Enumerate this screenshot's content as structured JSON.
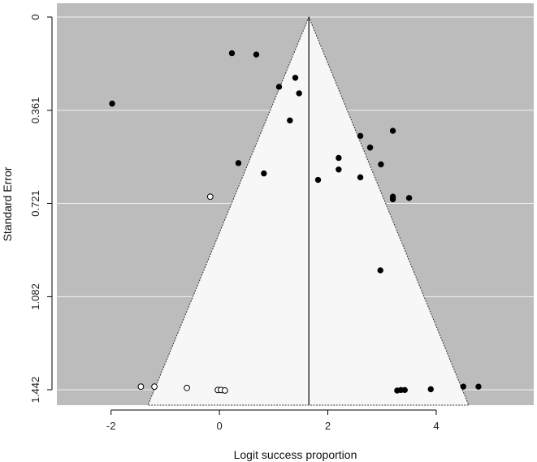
{
  "chart_data": {
    "type": "scatter",
    "subtype": "funnel",
    "title": "",
    "xlabel": "Logit success proportion",
    "ylabel": "Standard Error",
    "xlim": [
      -3.0,
      5.8
    ],
    "ylim": [
      1.442,
      0.0
    ],
    "x_ticks": [
      -2,
      0,
      2,
      4
    ],
    "x_tick_labels": [
      "-2",
      "0",
      "2",
      "4"
    ],
    "y_ticks": [
      0,
      0.361,
      0.721,
      1.082,
      1.442
    ],
    "y_tick_labels": [
      "0",
      "0.361",
      "0.721",
      "1.082",
      "1.442"
    ],
    "y_reversed": true,
    "grid": "horizontal",
    "funnel": {
      "center": 1.65,
      "base_left": -1.32,
      "base_right": 4.6,
      "base_se": 1.442
    },
    "colors": {
      "panel": "#bcbcbc",
      "funnel": "#f7f7f7",
      "gridline": "#f2f2f2",
      "observed_point": "#000000",
      "imputed_point": "#ffffff"
    },
    "series": [
      {
        "marker": "filled",
        "points": [
          {
            "x": 0.23,
            "se": 0.14
          },
          {
            "x": 0.68,
            "se": 0.145
          },
          {
            "x": -1.98,
            "se": 0.335
          },
          {
            "x": 1.1,
            "se": 0.27
          },
          {
            "x": 1.4,
            "se": 0.235
          },
          {
            "x": 1.47,
            "se": 0.295
          },
          {
            "x": 1.3,
            "se": 0.4
          },
          {
            "x": 0.35,
            "se": 0.565
          },
          {
            "x": 0.82,
            "se": 0.605
          },
          {
            "x": 1.82,
            "se": 0.63
          },
          {
            "x": 2.2,
            "se": 0.545
          },
          {
            "x": 2.2,
            "se": 0.59
          },
          {
            "x": 2.6,
            "se": 0.46
          },
          {
            "x": 2.78,
            "se": 0.505
          },
          {
            "x": 2.98,
            "se": 0.57
          },
          {
            "x": 2.6,
            "se": 0.62
          },
          {
            "x": 3.2,
            "se": 0.44
          },
          {
            "x": 3.2,
            "se": 0.695
          },
          {
            "x": 3.2,
            "se": 0.705
          },
          {
            "x": 3.5,
            "se": 0.7
          },
          {
            "x": 2.97,
            "se": 0.98
          },
          {
            "x": 3.28,
            "se": 1.445
          },
          {
            "x": 3.35,
            "se": 1.443
          },
          {
            "x": 3.42,
            "se": 1.443
          },
          {
            "x": 3.9,
            "se": 1.44
          },
          {
            "x": 4.5,
            "se": 1.43
          },
          {
            "x": 4.78,
            "se": 1.43
          }
        ]
      },
      {
        "marker": "open",
        "points": [
          {
            "x": -0.17,
            "se": 0.695
          },
          {
            "x": -1.45,
            "se": 1.43
          },
          {
            "x": -1.2,
            "se": 1.43
          },
          {
            "x": -0.6,
            "se": 1.435
          },
          {
            "x": -0.03,
            "se": 1.443
          },
          {
            "x": 0.03,
            "se": 1.443
          },
          {
            "x": 0.1,
            "se": 1.445
          }
        ]
      }
    ]
  }
}
